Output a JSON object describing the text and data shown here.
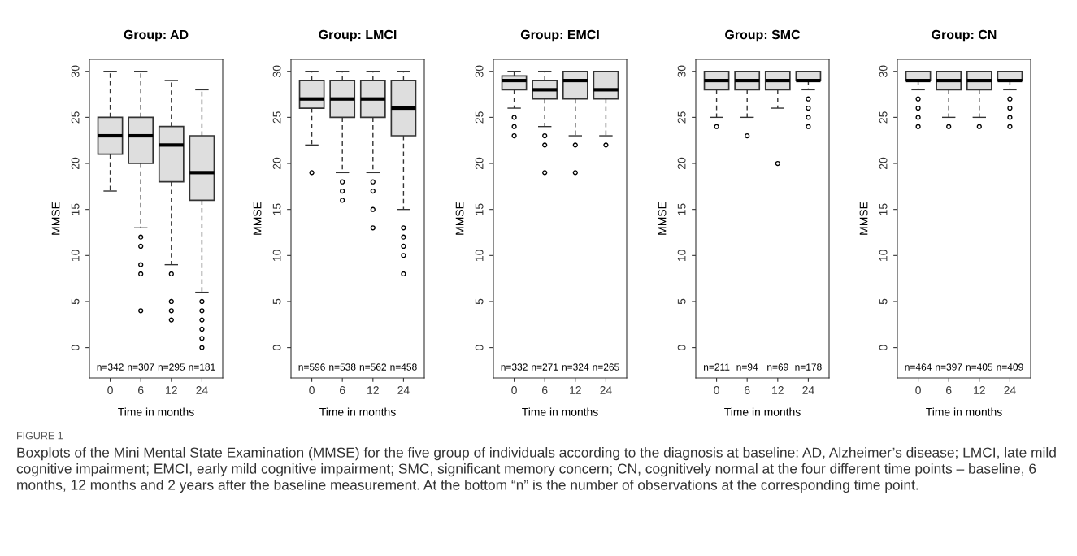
{
  "chart_data": [
    {
      "type": "box",
      "title": "Group: AD",
      "xlabel": "Time in months",
      "ylabel": "MMSE",
      "categories": [
        "0",
        "6",
        "12",
        "24"
      ],
      "color": "#dedede",
      "ylim": [
        -3.3,
        31.3
      ],
      "yticks": [
        0,
        5,
        10,
        15,
        20,
        25,
        30
      ],
      "grid": false,
      "legend": false,
      "boxes": [
        {
          "low": 17,
          "q1": 21,
          "median": 23,
          "q3": 25,
          "high": 30
        },
        {
          "low": 13,
          "q1": 20,
          "median": 23,
          "q3": 25,
          "high": 30,
          "outliers": [
            12,
            11,
            9,
            8,
            4
          ]
        },
        {
          "low": 9,
          "q1": 18,
          "median": 22,
          "q3": 24,
          "high": 29,
          "outliers": [
            8,
            5,
            4,
            3
          ]
        },
        {
          "low": 6,
          "q1": 16,
          "median": 19,
          "q3": 23,
          "high": 28,
          "outliers": [
            5,
            4,
            3,
            2,
            1,
            0
          ]
        }
      ],
      "annotations": [
        "n=342",
        "n=307",
        "n=295",
        "n=181"
      ]
    },
    {
      "type": "box",
      "title": "Group: LMCI",
      "xlabel": "Time in months",
      "ylabel": "MMSE",
      "categories": [
        "0",
        "6",
        "12",
        "24"
      ],
      "color": "#dedede",
      "ylim": [
        -3.3,
        31.3
      ],
      "yticks": [
        0,
        5,
        10,
        15,
        20,
        25,
        30
      ],
      "grid": false,
      "legend": false,
      "boxes": [
        {
          "low": 22,
          "q1": 26,
          "median": 27,
          "q3": 29,
          "high": 30,
          "outliers": [
            19
          ]
        },
        {
          "low": 19,
          "q1": 25,
          "median": 27,
          "q3": 29,
          "high": 30,
          "outliers": [
            18,
            17,
            16
          ]
        },
        {
          "low": 19,
          "q1": 25,
          "median": 27,
          "q3": 29,
          "high": 30,
          "outliers": [
            18,
            17,
            15,
            13
          ]
        },
        {
          "low": 15,
          "q1": 23,
          "median": 26,
          "q3": 29,
          "high": 30,
          "outliers": [
            13,
            12,
            11,
            10,
            8
          ]
        }
      ],
      "annotations": [
        "n=596",
        "n=538",
        "n=562",
        "n=458"
      ]
    },
    {
      "type": "box",
      "title": "Group: EMCI",
      "xlabel": "Time in months",
      "ylabel": "MMSE",
      "categories": [
        "0",
        "6",
        "12",
        "24"
      ],
      "color": "#dedede",
      "ylim": [
        -3.3,
        31.3
      ],
      "yticks": [
        0,
        5,
        10,
        15,
        20,
        25,
        30
      ],
      "grid": false,
      "legend": false,
      "boxes": [
        {
          "low": 26,
          "q1": 28,
          "median": 29,
          "q3": 29.5,
          "high": 30,
          "outliers": [
            25,
            24,
            23
          ]
        },
        {
          "low": 24,
          "q1": 27,
          "median": 28,
          "q3": 29,
          "high": 30,
          "outliers": [
            23,
            22,
            19
          ]
        },
        {
          "low": 23,
          "q1": 27,
          "median": 29,
          "q3": 30,
          "high": 30,
          "outliers": [
            22,
            19
          ]
        },
        {
          "low": 23,
          "q1": 27,
          "median": 28,
          "q3": 30,
          "high": 30,
          "outliers": [
            22
          ]
        }
      ],
      "annotations": [
        "n=332",
        "n=271",
        "n=324",
        "n=265"
      ]
    },
    {
      "type": "box",
      "title": "Group: SMC",
      "xlabel": "Time in months",
      "ylabel": "MMSE",
      "categories": [
        "0",
        "6",
        "12",
        "24"
      ],
      "color": "#dedede",
      "ylim": [
        -3.3,
        31.3
      ],
      "yticks": [
        0,
        5,
        10,
        15,
        20,
        25,
        30
      ],
      "grid": false,
      "legend": false,
      "boxes": [
        {
          "low": 25,
          "q1": 28,
          "median": 29,
          "q3": 30,
          "high": 30,
          "outliers": [
            24
          ]
        },
        {
          "low": 25,
          "q1": 28,
          "median": 29,
          "q3": 30,
          "high": 30,
          "outliers": [
            23
          ]
        },
        {
          "low": 26,
          "q1": 28,
          "median": 29,
          "q3": 30,
          "high": 30,
          "outliers": [
            20
          ]
        },
        {
          "low": 28,
          "q1": 29,
          "median": 29,
          "q3": 30,
          "high": 30,
          "outliers": [
            27,
            26,
            25,
            24
          ]
        }
      ],
      "annotations": [
        "n=211",
        "n=94",
        "n=69",
        "n=178"
      ]
    },
    {
      "type": "box",
      "title": "Group: CN",
      "xlabel": "Time in months",
      "ylabel": "MMSE",
      "categories": [
        "0",
        "6",
        "12",
        "24"
      ],
      "color": "#dedede",
      "ylim": [
        -3.3,
        31.3
      ],
      "yticks": [
        0,
        5,
        10,
        15,
        20,
        25,
        30
      ],
      "grid": false,
      "legend": false,
      "boxes": [
        {
          "low": 28,
          "q1": 29,
          "median": 29,
          "q3": 30,
          "high": 30,
          "outliers": [
            27,
            26,
            25,
            24
          ]
        },
        {
          "low": 25,
          "q1": 28,
          "median": 29,
          "q3": 30,
          "high": 30,
          "outliers": [
            24
          ]
        },
        {
          "low": 25,
          "q1": 28,
          "median": 29,
          "q3": 30,
          "high": 30,
          "outliers": [
            24
          ]
        },
        {
          "low": 28,
          "q1": 29,
          "median": 29,
          "q3": 30,
          "high": 30,
          "outliers": [
            27,
            26,
            25,
            24
          ]
        }
      ],
      "annotations": [
        "n=464",
        "n=397",
        "n=405",
        "n=409"
      ]
    },
    {
      "type": "other",
      "annotations": [
        "FIGURE 1",
        "Boxplots of the Mini Mental State Examination (MMSE) for the five group of individuals according to the diagnosis at baseline: AD, Alzheimer’s disease; LMCI, late mild cognitive impairment; EMCI, early mild cognitive impairment; SMC, significant memory concern; CN, cognitively normal at the four different time points – baseline, 6 months, 12 months and 2 years after the baseline measurement. At the bottom “n” is the number of observations at the corresponding time point."
      ]
    }
  ]
}
